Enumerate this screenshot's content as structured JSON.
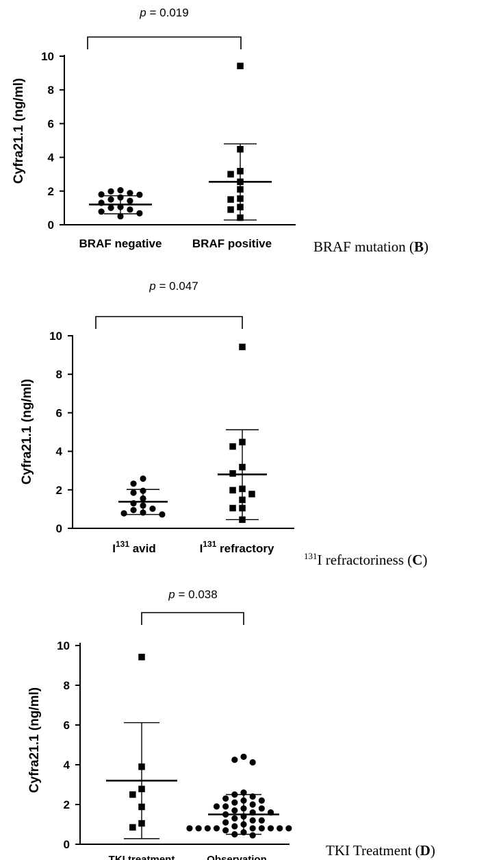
{
  "chart_data": [
    {
      "type": "scatter",
      "panel": "B",
      "caption_text": "BRAF mutation (",
      "caption_letter": "B",
      "ylabel": "Cyfra21.1 (ng/ml)",
      "ylim": [
        0,
        10
      ],
      "yticks": [
        "0",
        "2",
        "4",
        "6",
        "8",
        "10"
      ],
      "p_prefix": "p",
      "p_text": " = 0.019",
      "groups": [
        {
          "label": "BRAF negative",
          "marker": "circle",
          "mean": 1.2,
          "sd_low": 0.65,
          "sd_high": 1.72,
          "values": [
            2.05,
            1.98,
            1.88,
            1.8,
            1.78,
            1.62,
            1.5,
            1.42,
            1.3,
            1.05,
            1.0,
            0.9,
            0.78,
            0.68,
            0.5
          ]
        },
        {
          "label": "BRAF positive",
          "marker": "square",
          "mean": 2.55,
          "sd_low": 0.28,
          "sd_high": 4.8,
          "values": [
            9.42,
            4.48,
            3.18,
            3.0,
            2.55,
            2.1,
            1.55,
            1.5,
            1.05,
            0.9,
            0.42
          ]
        }
      ]
    },
    {
      "type": "scatter",
      "panel": "C",
      "caption_sup": "131",
      "caption_text": "I refractoriness (",
      "caption_letter": "C",
      "ylabel": "Cyfra21.1 (ng/ml)",
      "ylim": [
        0,
        10
      ],
      "yticks": [
        "0",
        "2",
        "4",
        "6",
        "8",
        "10"
      ],
      "p_prefix": "p",
      "p_text": " = 0.047",
      "groups": [
        {
          "label_base": "I",
          "label_sup": "131",
          "label_rest": " avid",
          "marker": "circle",
          "mean": 1.38,
          "sd_low": 0.72,
          "sd_high": 2.02,
          "values": [
            2.58,
            2.32,
            1.95,
            1.85,
            1.55,
            1.3,
            1.18,
            1.02,
            0.95,
            0.82,
            0.78,
            0.72
          ]
        },
        {
          "label_base": "I",
          "label_sup": "131",
          "label_rest": " refractory",
          "marker": "square",
          "mean": 2.8,
          "sd_low": 0.45,
          "sd_high": 5.12,
          "values": [
            9.42,
            4.48,
            4.25,
            3.18,
            2.85,
            2.05,
            1.98,
            1.78,
            1.48,
            1.05,
            1.05,
            0.45
          ]
        }
      ]
    },
    {
      "type": "scatter",
      "panel": "D",
      "caption_text": "TKI Treatment (",
      "caption_letter": "D",
      "ylabel": "Cyfra21.1 (ng/ml)",
      "ylim": [
        0,
        10
      ],
      "yticks": [
        "0",
        "2",
        "4",
        "6",
        "8",
        "10"
      ],
      "p_prefix": "p",
      "p_text": " = 0.038",
      "groups": [
        {
          "label": "TKI treatment",
          "marker": "square",
          "mean": 3.2,
          "sd_low": 0.28,
          "sd_high": 6.12,
          "values": [
            9.42,
            3.9,
            2.78,
            2.5,
            1.88,
            1.05,
            0.85
          ]
        },
        {
          "label": "Observation",
          "marker": "circle",
          "mean": 1.5,
          "sd_low": 0.5,
          "sd_high": 2.5,
          "values": [
            4.4,
            4.25,
            4.12,
            2.6,
            2.5,
            2.4,
            2.3,
            2.2,
            2.2,
            2.1,
            2.0,
            1.9,
            1.9,
            1.8,
            1.8,
            1.7,
            1.6,
            1.6,
            1.5,
            1.4,
            1.3,
            1.2,
            1.2,
            1.1,
            1.0,
            0.9,
            0.8,
            0.8,
            0.8,
            0.8,
            0.8,
            0.8,
            0.8,
            0.8,
            0.8,
            0.7,
            0.6,
            0.5,
            0.45
          ]
        }
      ]
    }
  ]
}
